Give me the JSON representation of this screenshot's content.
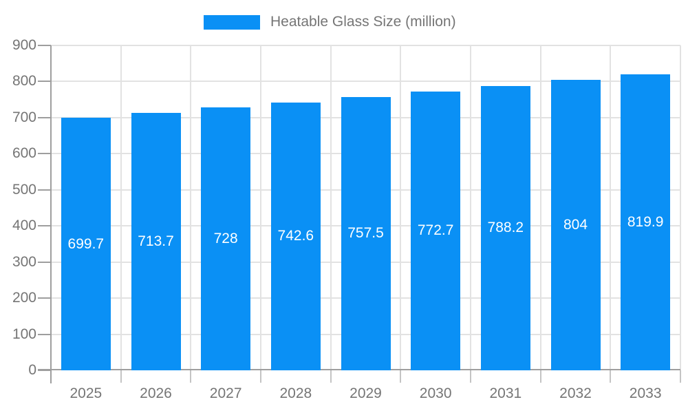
{
  "chart_data": {
    "type": "bar",
    "title": "",
    "xlabel": "",
    "ylabel": "",
    "categories": [
      "2025",
      "2026",
      "2027",
      "2028",
      "2029",
      "2030",
      "2031",
      "2032",
      "2033"
    ],
    "series": [
      {
        "name": "Heatable Glass Size (million)",
        "values": [
          699.7,
          713.7,
          728,
          742.6,
          757.5,
          772.7,
          788.2,
          804,
          819.9
        ],
        "color": "#0a90f5"
      }
    ],
    "value_labels": [
      "699.7",
      "713.7",
      "728",
      "742.6",
      "757.5",
      "772.7",
      "788.2",
      "804",
      "819.9"
    ],
    "ylim": [
      0,
      900
    ],
    "yticks": [
      0,
      100,
      200,
      300,
      400,
      500,
      600,
      700,
      800,
      900
    ],
    "grid": true,
    "legend": {
      "label": "Heatable Glass Size (million)",
      "position": "top-center"
    }
  },
  "colors": {
    "bar": "#0a90f5",
    "grid": "#e2e2e2",
    "axis": "#9e9e9e",
    "label_text": "#757575",
    "value_text": "#ffffff",
    "background": "#ffffff"
  }
}
